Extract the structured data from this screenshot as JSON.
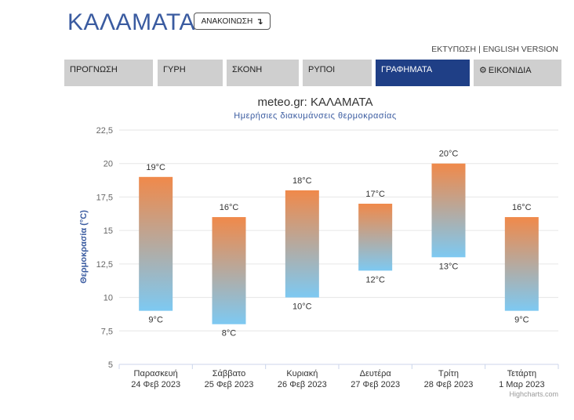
{
  "header": {
    "city": "ΚΑΛΑΜΑΤΑ",
    "announce_label": "ΑΝΑΚΟΙΝΩΣΗ",
    "announce_icon": "arrow-icon"
  },
  "toplinks": {
    "print": "ΕΚΤΥΠΩΣΗ",
    "separator": "|",
    "english": "ENGLISH VERSION"
  },
  "tabs": [
    {
      "label": "ΠΡΟΓΝΩΣΗ"
    },
    {
      "label": "ΓΥΡΗ"
    },
    {
      "label": "ΣΚΟΝΗ"
    },
    {
      "label": "ΡΥΠΟΙ"
    },
    {
      "label": "ΓΡΑΦΗΜΑΤΑ",
      "active": true
    },
    {
      "label": "ΕΙΚΟΝΙΔΙΑ",
      "icon": "gear-icon"
    }
  ],
  "colors": {
    "brand": "#3a5ba0",
    "active_tab": "#1f3f86",
    "bar_top": "#f0894a",
    "bar_bottom": "#7dc9f2"
  },
  "chart_data": {
    "type": "bar",
    "title": "meteo.gr: ΚΑΛΑΜΑΤΑ",
    "subtitle": "Ημερήσιες διακυμάνσεις θερμοκρασίας",
    "ylabel": "Θερμοκρασία (°C)",
    "ylim": [
      5,
      22.5
    ],
    "yticks": [
      "5",
      "7,5",
      "10",
      "12,5",
      "15",
      "17,5",
      "20",
      "22,5"
    ],
    "categories": [
      {
        "day": "Παρασκευή",
        "date": "24 Φεβ 2023"
      },
      {
        "day": "Σάββατο",
        "date": "25 Φεβ 2023"
      },
      {
        "day": "Κυριακή",
        "date": "26 Φεβ 2023"
      },
      {
        "day": "Δευτέρα",
        "date": "27 Φεβ 2023"
      },
      {
        "day": "Τρίτη",
        "date": "28 Φεβ 2023"
      },
      {
        "day": "Τετάρτη",
        "date": "1 Μαρ 2023"
      }
    ],
    "series": [
      {
        "low": 9,
        "high": 19,
        "low_label": "9°C",
        "high_label": "19°C"
      },
      {
        "low": 8,
        "high": 16,
        "low_label": "8°C",
        "high_label": "16°C"
      },
      {
        "low": 10,
        "high": 18,
        "low_label": "10°C",
        "high_label": "18°C"
      },
      {
        "low": 12,
        "high": 17,
        "low_label": "12°C",
        "high_label": "17°C"
      },
      {
        "low": 13,
        "high": 20,
        "low_label": "13°C",
        "high_label": "20°C"
      },
      {
        "low": 9,
        "high": 16,
        "low_label": "9°C",
        "high_label": "16°C"
      }
    ],
    "grid": true,
    "credits": "Highcharts.com"
  }
}
